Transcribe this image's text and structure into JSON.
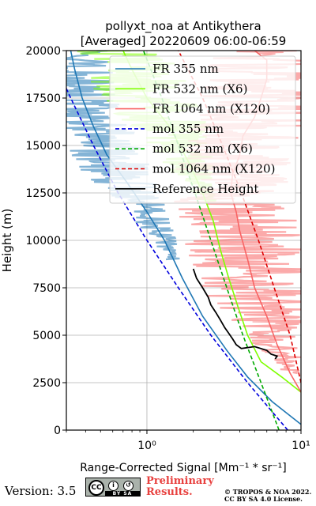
{
  "chart_data": {
    "type": "line",
    "title_line1": "pollyxt_noa at Antikythera",
    "title_line2": "[Averaged] 20220609 06:00-06:59",
    "xlabel": "Range-Corrected Signal [Mm⁻¹ * sr⁻¹]",
    "ylabel": "Height (m)",
    "x_scale": "log",
    "xlim": [
      0.3,
      10
    ],
    "ylim": [
      0,
      20000
    ],
    "x_tick_labels": [
      "10⁰",
      "10¹"
    ],
    "y_ticks": [
      0,
      2500,
      5000,
      7500,
      10000,
      12500,
      15000,
      17500,
      20000
    ],
    "grid": true,
    "legend_position": "top-right",
    "series": [
      {
        "name": "FR 355 nm",
        "color": "#1f77b4",
        "style": "solid",
        "points": [
          [
            10,
            300
          ],
          [
            6.5,
            1500
          ],
          [
            4.5,
            2800
          ],
          [
            3.3,
            4200
          ],
          [
            2.3,
            6000
          ],
          [
            1.7,
            8000
          ],
          [
            1.3,
            10000
          ],
          [
            1.0,
            11500
          ],
          [
            0.75,
            13000
          ],
          [
            0.55,
            14500
          ],
          [
            0.45,
            16000
          ],
          [
            0.38,
            17500
          ],
          [
            0.34,
            19000
          ],
          [
            0.32,
            20000
          ]
        ]
      },
      {
        "name": "FR 532 nm (X6)",
        "color": "#7fff00",
        "style": "solid",
        "points": [
          [
            10,
            2000
          ],
          [
            7.5,
            2800
          ],
          [
            5.5,
            3600
          ],
          [
            4.5,
            5000
          ],
          [
            3.9,
            6500
          ],
          [
            3.4,
            8000
          ],
          [
            3.0,
            9500
          ],
          [
            2.7,
            11000
          ],
          [
            2.3,
            12500
          ],
          [
            1.9,
            14000
          ],
          [
            1.4,
            16000
          ],
          [
            1.0,
            17500
          ],
          [
            0.8,
            19000
          ],
          [
            0.7,
            20000
          ]
        ]
      },
      {
        "name": "FR 1064 nm (X120)",
        "color": "#f86464",
        "style": "solid",
        "points": [
          [
            10,
            2000
          ],
          [
            8.5,
            3000
          ],
          [
            7.0,
            4500
          ],
          [
            6.0,
            6000
          ],
          [
            5.0,
            7500
          ],
          [
            4.5,
            9000
          ],
          [
            4.0,
            10500
          ],
          [
            3.8,
            11500
          ],
          [
            3.5,
            12500
          ],
          [
            3.6,
            13500
          ],
          [
            4.0,
            14500
          ],
          [
            4.2,
            15500
          ],
          [
            5.0,
            16500
          ],
          [
            5.5,
            17500
          ],
          [
            6.0,
            18500
          ],
          [
            6.0,
            19500
          ],
          [
            5.0,
            20000
          ]
        ]
      },
      {
        "name": "mol 355 nm",
        "color": "#0000dd",
        "style": "dashed",
        "points": [
          [
            8.2,
            0
          ],
          [
            4.5,
            2500
          ],
          [
            2.6,
            5000
          ],
          [
            1.6,
            7500
          ],
          [
            1.0,
            10000
          ],
          [
            0.65,
            12500
          ],
          [
            0.45,
            15000
          ],
          [
            0.32,
            17500
          ],
          [
            0.3,
            18000
          ]
        ]
      },
      {
        "name": "mol 532 nm (X6)",
        "color": "#00aa00",
        "style": "dashed",
        "points": [
          [
            7.2,
            0
          ],
          [
            5.5,
            2500
          ],
          [
            4.2,
            5000
          ],
          [
            3.3,
            7500
          ],
          [
            2.6,
            10000
          ],
          [
            2.05,
            12500
          ],
          [
            1.6,
            15000
          ],
          [
            1.25,
            17500
          ],
          [
            0.95,
            20000
          ]
        ]
      },
      {
        "name": "mol 1064 nm (X120)",
        "color": "#dd0000",
        "style": "dashed",
        "points": [
          [
            10,
            2500
          ],
          [
            8.5,
            5000
          ],
          [
            6.7,
            7500
          ],
          [
            5.3,
            10000
          ],
          [
            4.1,
            12500
          ],
          [
            3.1,
            15000
          ],
          [
            2.3,
            17500
          ],
          [
            1.6,
            20000
          ]
        ]
      },
      {
        "name": "Reference Height",
        "color": "#000000",
        "style": "solid",
        "points": [
          [
            2.0,
            8500
          ],
          [
            2.1,
            8000
          ],
          [
            2.3,
            7500
          ],
          [
            2.5,
            7000
          ],
          [
            2.6,
            6600
          ],
          [
            2.8,
            6200
          ],
          [
            3.0,
            5800
          ],
          [
            3.2,
            5400
          ],
          [
            3.4,
            5100
          ],
          [
            3.6,
            4800
          ],
          [
            3.8,
            4500
          ],
          [
            4.1,
            4300
          ],
          [
            5.0,
            4400
          ],
          [
            6.0,
            4200
          ],
          [
            6.4,
            4000
          ],
          [
            7.0,
            3900
          ],
          [
            6.8,
            3750
          ]
        ]
      }
    ]
  },
  "footer": {
    "version": "Version: 3.5",
    "cc_label": "CC",
    "cc_bar_text": "BY SA",
    "preliminary_line1": "Preliminary",
    "preliminary_line2": "Results.",
    "copyright_line1": "© TROPOS & NOA 2022.",
    "copyright_line2": "CC BY SA 4.0 License."
  }
}
